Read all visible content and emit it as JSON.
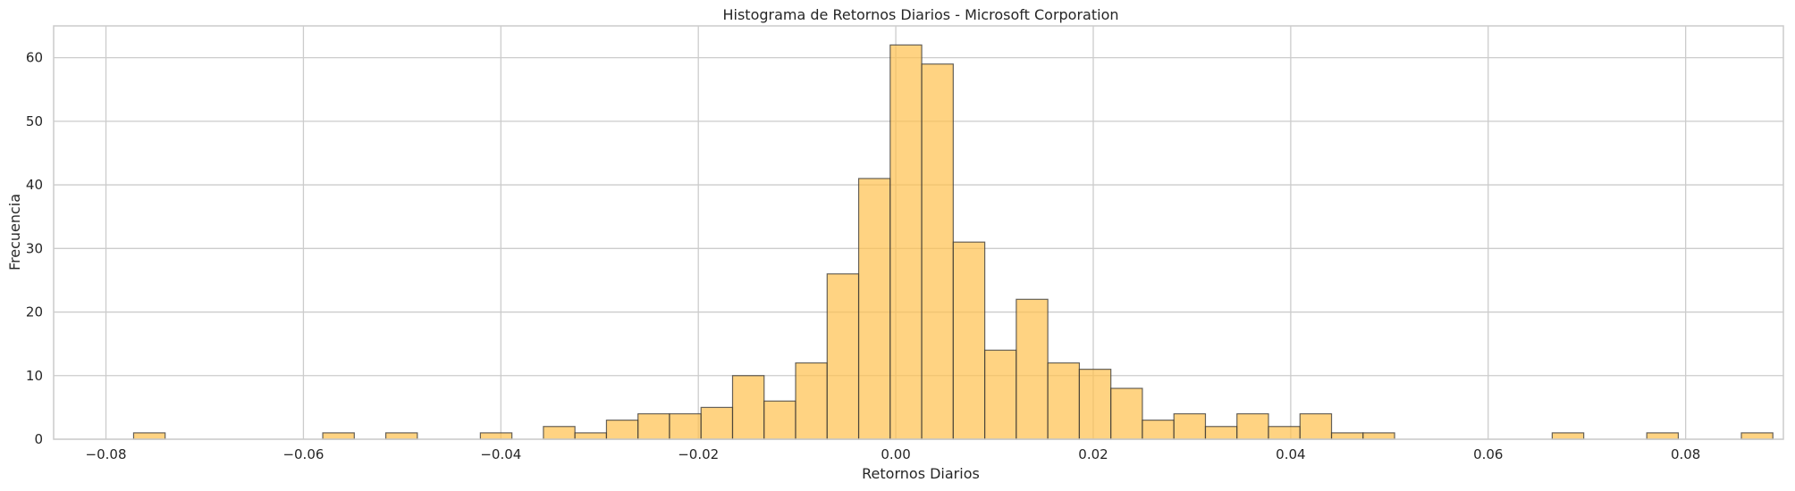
{
  "chart_data": {
    "type": "bar",
    "title": "Histograma de Retornos Diarios - Microsoft Corporation",
    "xlabel": "Retornos Diarios",
    "ylabel": "Frecuencia",
    "xlim": [
      -0.0853,
      0.0899
    ],
    "ylim": [
      0,
      65
    ],
    "grid": true,
    "bar_color": "#ffc04d",
    "bar_alpha": 0.7,
    "edge_color": "#333333",
    "bin_start": -0.0772,
    "bin_width": 0.003193,
    "counts": [
      1,
      0,
      0,
      0,
      0,
      0,
      1,
      0,
      1,
      0,
      0,
      1,
      0,
      2,
      1,
      3,
      4,
      4,
      5,
      10,
      6,
      12,
      26,
      41,
      62,
      59,
      31,
      14,
      22,
      12,
      11,
      8,
      3,
      4,
      2,
      4,
      2,
      4,
      1,
      1,
      0,
      0,
      0,
      0,
      0,
      1,
      0,
      0,
      1,
      0,
      0,
      1
    ],
    "x_ticks": [
      -0.08,
      -0.06,
      -0.04,
      -0.02,
      0.0,
      0.02,
      0.04,
      0.06,
      0.08
    ],
    "x_tick_labels": [
      "−0.08",
      "−0.06",
      "−0.04",
      "−0.02",
      "0.00",
      "0.02",
      "0.04",
      "0.06",
      "0.08"
    ],
    "y_ticks": [
      0,
      10,
      20,
      30,
      40,
      50,
      60
    ],
    "y_tick_labels": [
      "0",
      "10",
      "20",
      "30",
      "40",
      "50",
      "60"
    ]
  }
}
